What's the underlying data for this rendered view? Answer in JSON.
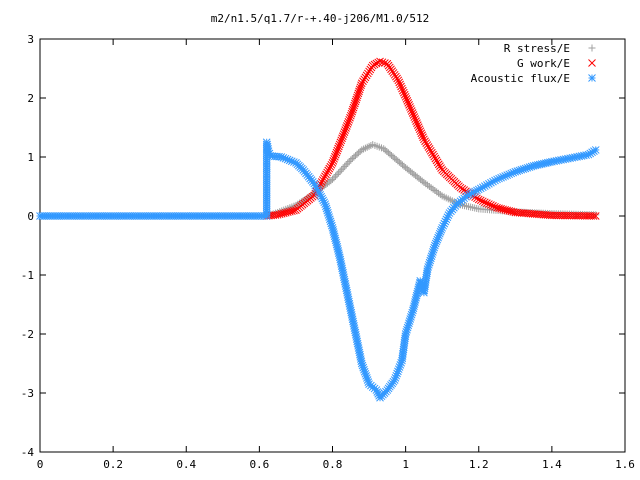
{
  "chart_data": {
    "type": "scatter",
    "title": "m2/n1.5/q1.7/r-+.40-j206/M1.0/512",
    "xlabel": "",
    "ylabel": "",
    "xlim": [
      0,
      1.6
    ],
    "ylim": [
      -4,
      3
    ],
    "x_ticks": [
      "0",
      "0.2",
      "0.4",
      "0.6",
      "0.8",
      "1",
      "1.2",
      "1.4",
      "1.6"
    ],
    "y_ticks": [
      "-4",
      "-3",
      "-2",
      "-1",
      "0",
      "1",
      "2",
      "3"
    ],
    "grid": false,
    "legend_position": "top-right",
    "series": [
      {
        "name": "R stress/E",
        "marker": "plus",
        "color": "#a0a0a0",
        "points": [
          [
            0.62,
            0.0
          ],
          [
            0.65,
            0.06
          ],
          [
            0.7,
            0.18
          ],
          [
            0.75,
            0.38
          ],
          [
            0.8,
            0.62
          ],
          [
            0.85,
            0.95
          ],
          [
            0.88,
            1.12
          ],
          [
            0.91,
            1.21
          ],
          [
            0.94,
            1.14
          ],
          [
            0.97,
            0.98
          ],
          [
            1.0,
            0.82
          ],
          [
            1.05,
            0.57
          ],
          [
            1.1,
            0.34
          ],
          [
            1.15,
            0.19
          ],
          [
            1.2,
            0.12
          ],
          [
            1.3,
            0.07
          ],
          [
            1.4,
            0.04
          ],
          [
            1.52,
            0.02
          ]
        ]
      },
      {
        "name": "G work/E",
        "marker": "cross",
        "color": "#ff0000",
        "points": [
          [
            0.62,
            0.0
          ],
          [
            0.65,
            0.02
          ],
          [
            0.7,
            0.1
          ],
          [
            0.75,
            0.35
          ],
          [
            0.8,
            0.9
          ],
          [
            0.85,
            1.7
          ],
          [
            0.88,
            2.25
          ],
          [
            0.91,
            2.55
          ],
          [
            0.93,
            2.62
          ],
          [
            0.95,
            2.58
          ],
          [
            0.98,
            2.3
          ],
          [
            1.0,
            2.02
          ],
          [
            1.05,
            1.3
          ],
          [
            1.1,
            0.78
          ],
          [
            1.15,
            0.48
          ],
          [
            1.2,
            0.28
          ],
          [
            1.25,
            0.14
          ],
          [
            1.3,
            0.06
          ],
          [
            1.4,
            0.01
          ],
          [
            1.52,
            0.0
          ]
        ]
      },
      {
        "name": "Acoustic flux/E",
        "marker": "star",
        "color": "#3399ff",
        "points": [
          [
            0.0,
            0.0
          ],
          [
            0.1,
            0.0
          ],
          [
            0.2,
            0.0
          ],
          [
            0.3,
            0.0
          ],
          [
            0.4,
            0.0
          ],
          [
            0.5,
            0.0
          ],
          [
            0.6,
            0.0
          ],
          [
            0.62,
            0.0
          ],
          [
            0.62,
            1.25
          ],
          [
            0.625,
            1.1
          ],
          [
            0.63,
            1.02
          ],
          [
            0.66,
            1.0
          ],
          [
            0.7,
            0.9
          ],
          [
            0.72,
            0.78
          ],
          [
            0.75,
            0.55
          ],
          [
            0.78,
            0.2
          ],
          [
            0.8,
            -0.2
          ],
          [
            0.82,
            -0.7
          ],
          [
            0.84,
            -1.3
          ],
          [
            0.86,
            -1.9
          ],
          [
            0.88,
            -2.5
          ],
          [
            0.9,
            -2.85
          ],
          [
            0.92,
            -2.95
          ],
          [
            0.93,
            -3.08
          ],
          [
            0.95,
            -2.95
          ],
          [
            0.97,
            -2.78
          ],
          [
            0.99,
            -2.45
          ],
          [
            1.0,
            -2.0
          ],
          [
            1.02,
            -1.6
          ],
          [
            1.04,
            -1.1
          ],
          [
            1.05,
            -1.3
          ],
          [
            1.06,
            -0.9
          ],
          [
            1.08,
            -0.5
          ],
          [
            1.1,
            -0.2
          ],
          [
            1.12,
            0.05
          ],
          [
            1.14,
            0.2
          ],
          [
            1.17,
            0.35
          ],
          [
            1.2,
            0.45
          ],
          [
            1.25,
            0.62
          ],
          [
            1.3,
            0.75
          ],
          [
            1.35,
            0.85
          ],
          [
            1.4,
            0.92
          ],
          [
            1.45,
            0.98
          ],
          [
            1.5,
            1.04
          ],
          [
            1.52,
            1.12
          ]
        ]
      }
    ]
  }
}
